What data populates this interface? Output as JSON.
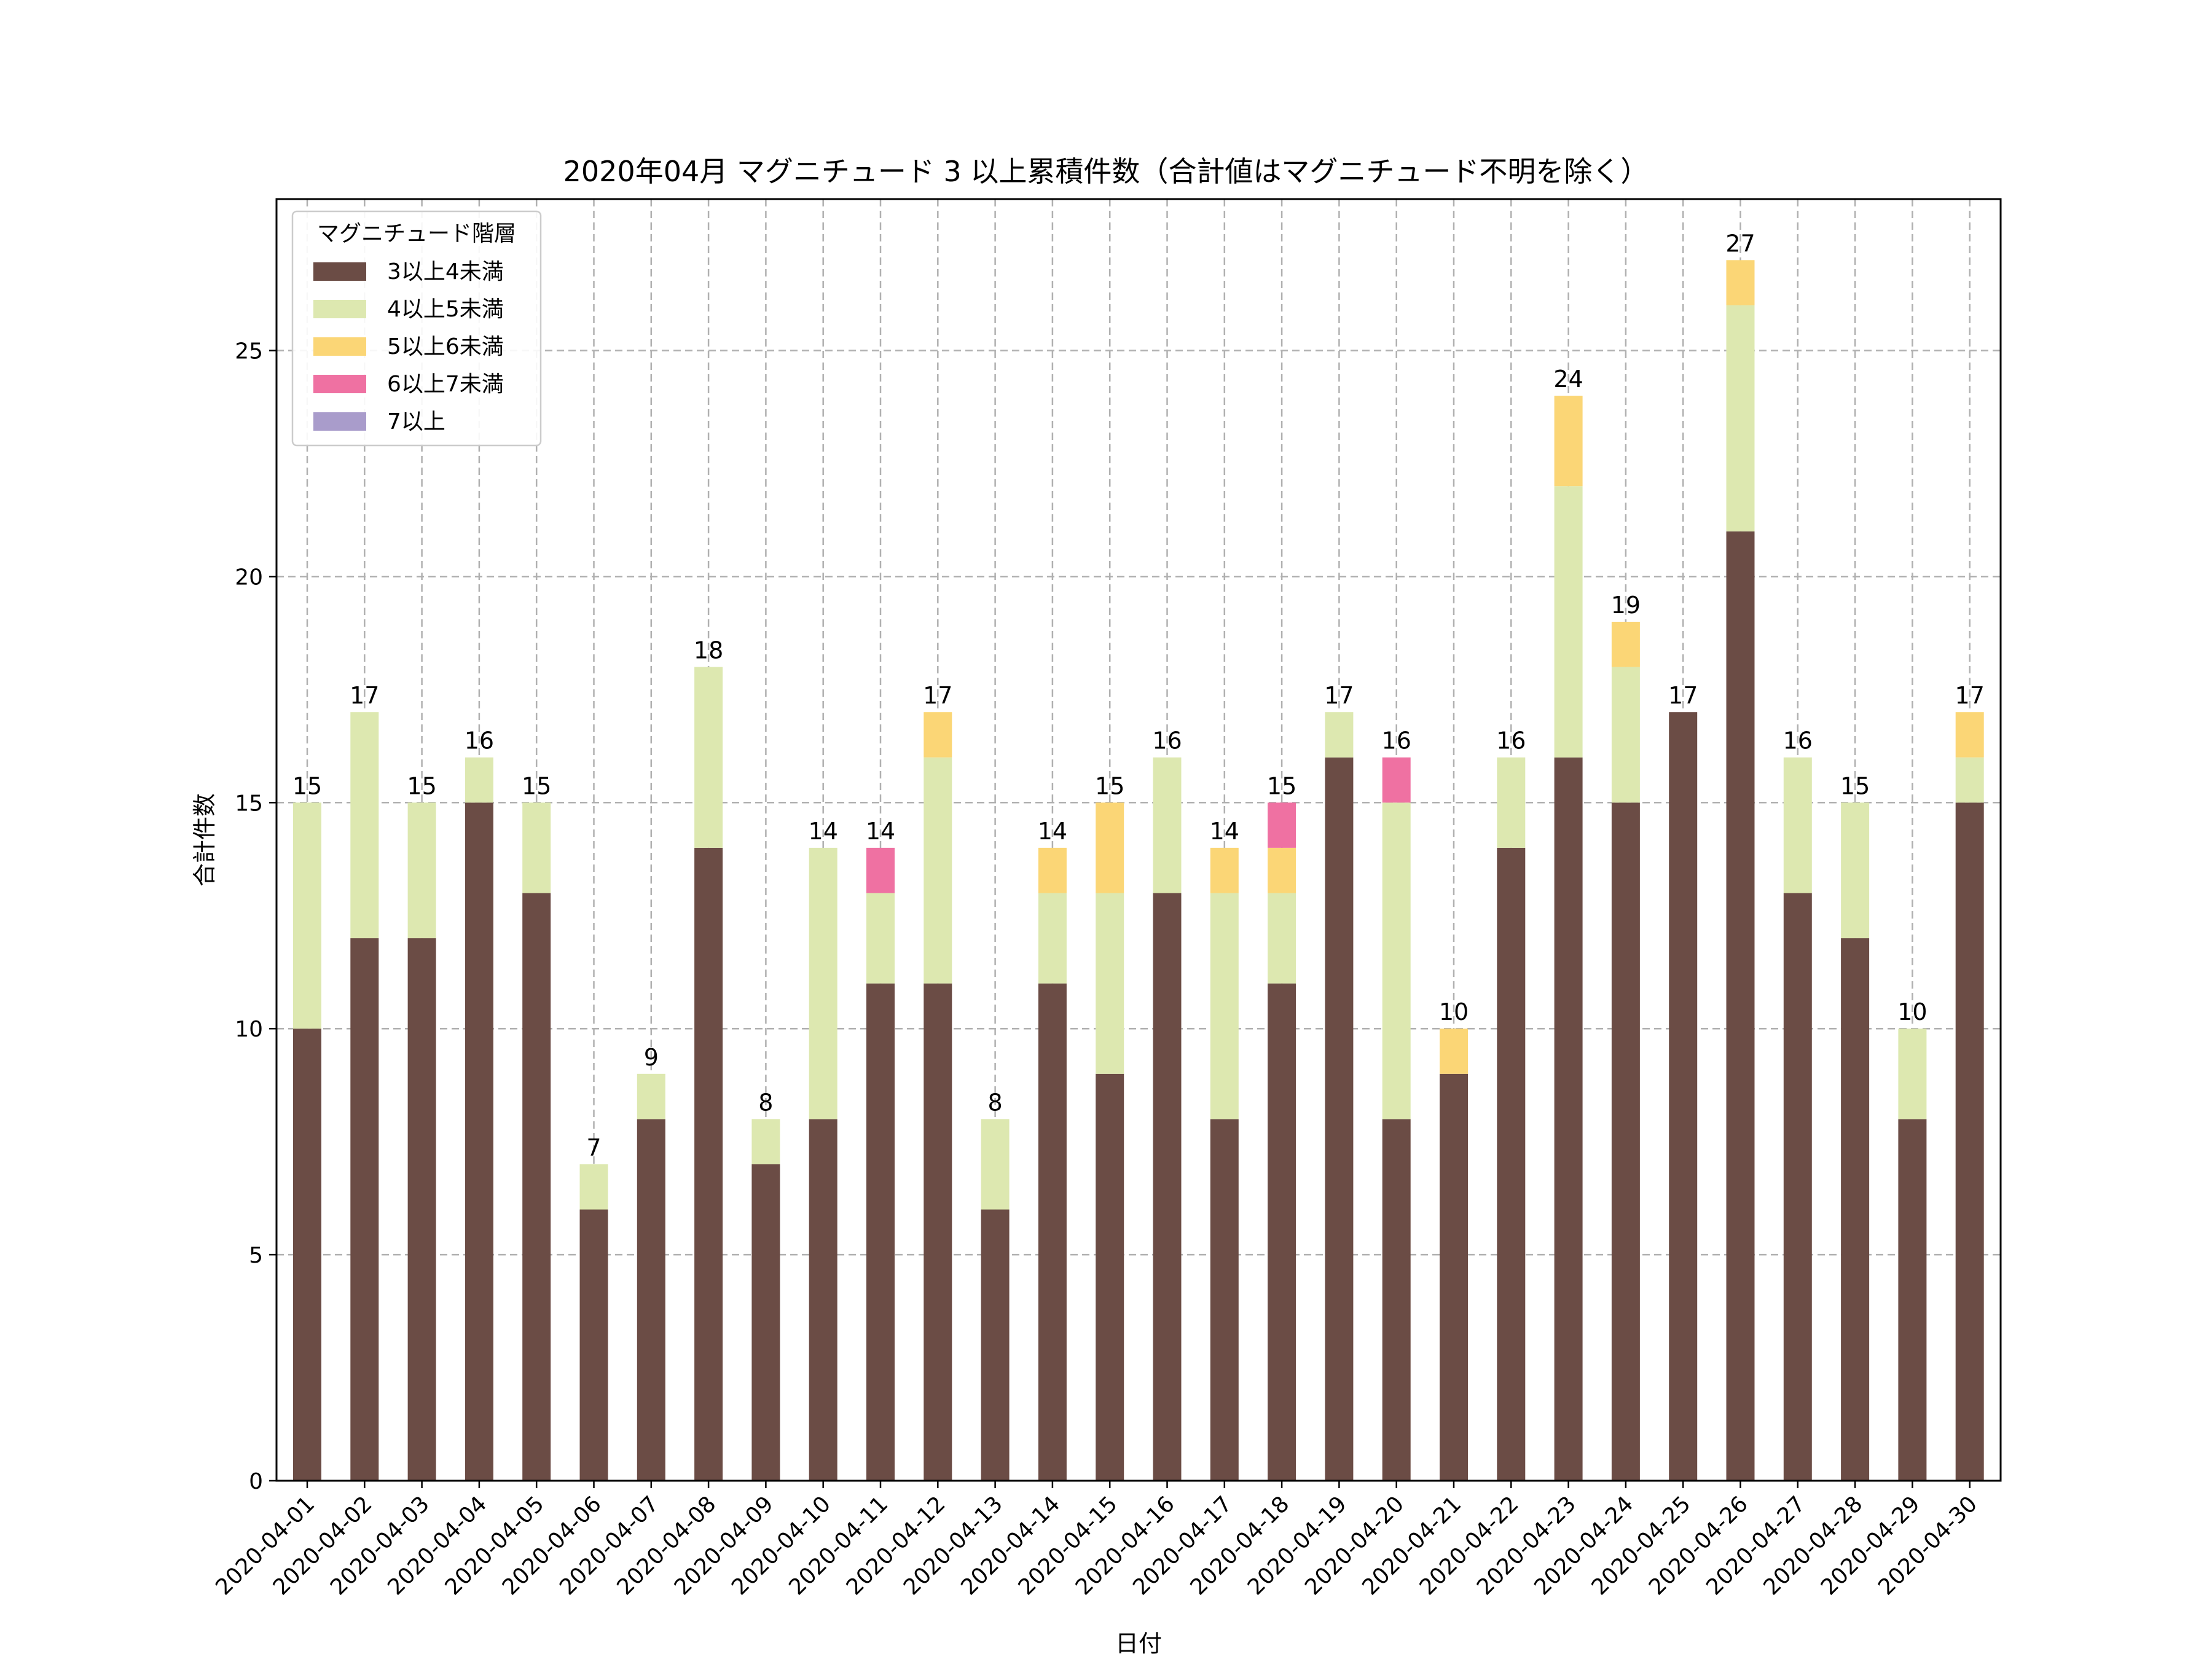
{
  "chart_data": {
    "type": "bar",
    "stacked": true,
    "title": "2020年04月 マグニチュード 3 以上累積件数（合計値はマグニチュード不明を除く）",
    "xlabel": "日付",
    "ylabel": "合計件数",
    "ylim": [
      0,
      28.35
    ],
    "yticks": [
      0,
      5,
      10,
      15,
      20,
      25
    ],
    "grid": true,
    "legend": {
      "title": "マグニチュード階層",
      "placement": "upper-left"
    },
    "categories": [
      "2020-04-01",
      "2020-04-02",
      "2020-04-03",
      "2020-04-04",
      "2020-04-05",
      "2020-04-06",
      "2020-04-07",
      "2020-04-08",
      "2020-04-09",
      "2020-04-10",
      "2020-04-11",
      "2020-04-12",
      "2020-04-13",
      "2020-04-14",
      "2020-04-15",
      "2020-04-16",
      "2020-04-17",
      "2020-04-18",
      "2020-04-19",
      "2020-04-20",
      "2020-04-21",
      "2020-04-22",
      "2020-04-23",
      "2020-04-24",
      "2020-04-25",
      "2020-04-26",
      "2020-04-27",
      "2020-04-28",
      "2020-04-29",
      "2020-04-30"
    ],
    "series": [
      {
        "name": "3以上4未満",
        "color": "#6b4c45",
        "values": [
          10,
          12,
          12,
          15,
          13,
          6,
          8,
          14,
          7,
          8,
          11,
          11,
          6,
          11,
          9,
          13,
          8,
          11,
          16,
          8,
          9,
          14,
          16,
          15,
          17,
          21,
          13,
          12,
          8,
          15
        ]
      },
      {
        "name": "4以上5未満",
        "color": "#dde8b0",
        "values": [
          5,
          5,
          3,
          1,
          2,
          1,
          1,
          4,
          1,
          6,
          2,
          5,
          2,
          2,
          4,
          3,
          5,
          2,
          1,
          7,
          0,
          2,
          6,
          3,
          0,
          5,
          3,
          3,
          2,
          1
        ]
      },
      {
        "name": "5以上6未満",
        "color": "#fbd676",
        "values": [
          0,
          0,
          0,
          0,
          0,
          0,
          0,
          0,
          0,
          0,
          0,
          1,
          0,
          1,
          2,
          0,
          1,
          1,
          0,
          0,
          1,
          0,
          2,
          1,
          0,
          1,
          0,
          0,
          0,
          1
        ]
      },
      {
        "name": "6以上7未満",
        "color": "#ef71a2",
        "values": [
          0,
          0,
          0,
          0,
          0,
          0,
          0,
          0,
          0,
          0,
          1,
          0,
          0,
          0,
          0,
          0,
          0,
          1,
          0,
          1,
          0,
          0,
          0,
          0,
          0,
          0,
          0,
          0,
          0,
          0
        ]
      },
      {
        "name": "7以上",
        "color": "#a99ccb",
        "values": [
          0,
          0,
          0,
          0,
          0,
          0,
          0,
          0,
          0,
          0,
          0,
          0,
          0,
          0,
          0,
          0,
          0,
          0,
          0,
          0,
          0,
          0,
          0,
          0,
          0,
          0,
          0,
          0,
          0,
          0
        ]
      }
    ],
    "totals": [
      15,
      17,
      15,
      16,
      15,
      7,
      9,
      18,
      8,
      14,
      14,
      17,
      8,
      14,
      15,
      16,
      14,
      15,
      17,
      16,
      10,
      16,
      24,
      19,
      17,
      27,
      16,
      15,
      10,
      17
    ]
  }
}
